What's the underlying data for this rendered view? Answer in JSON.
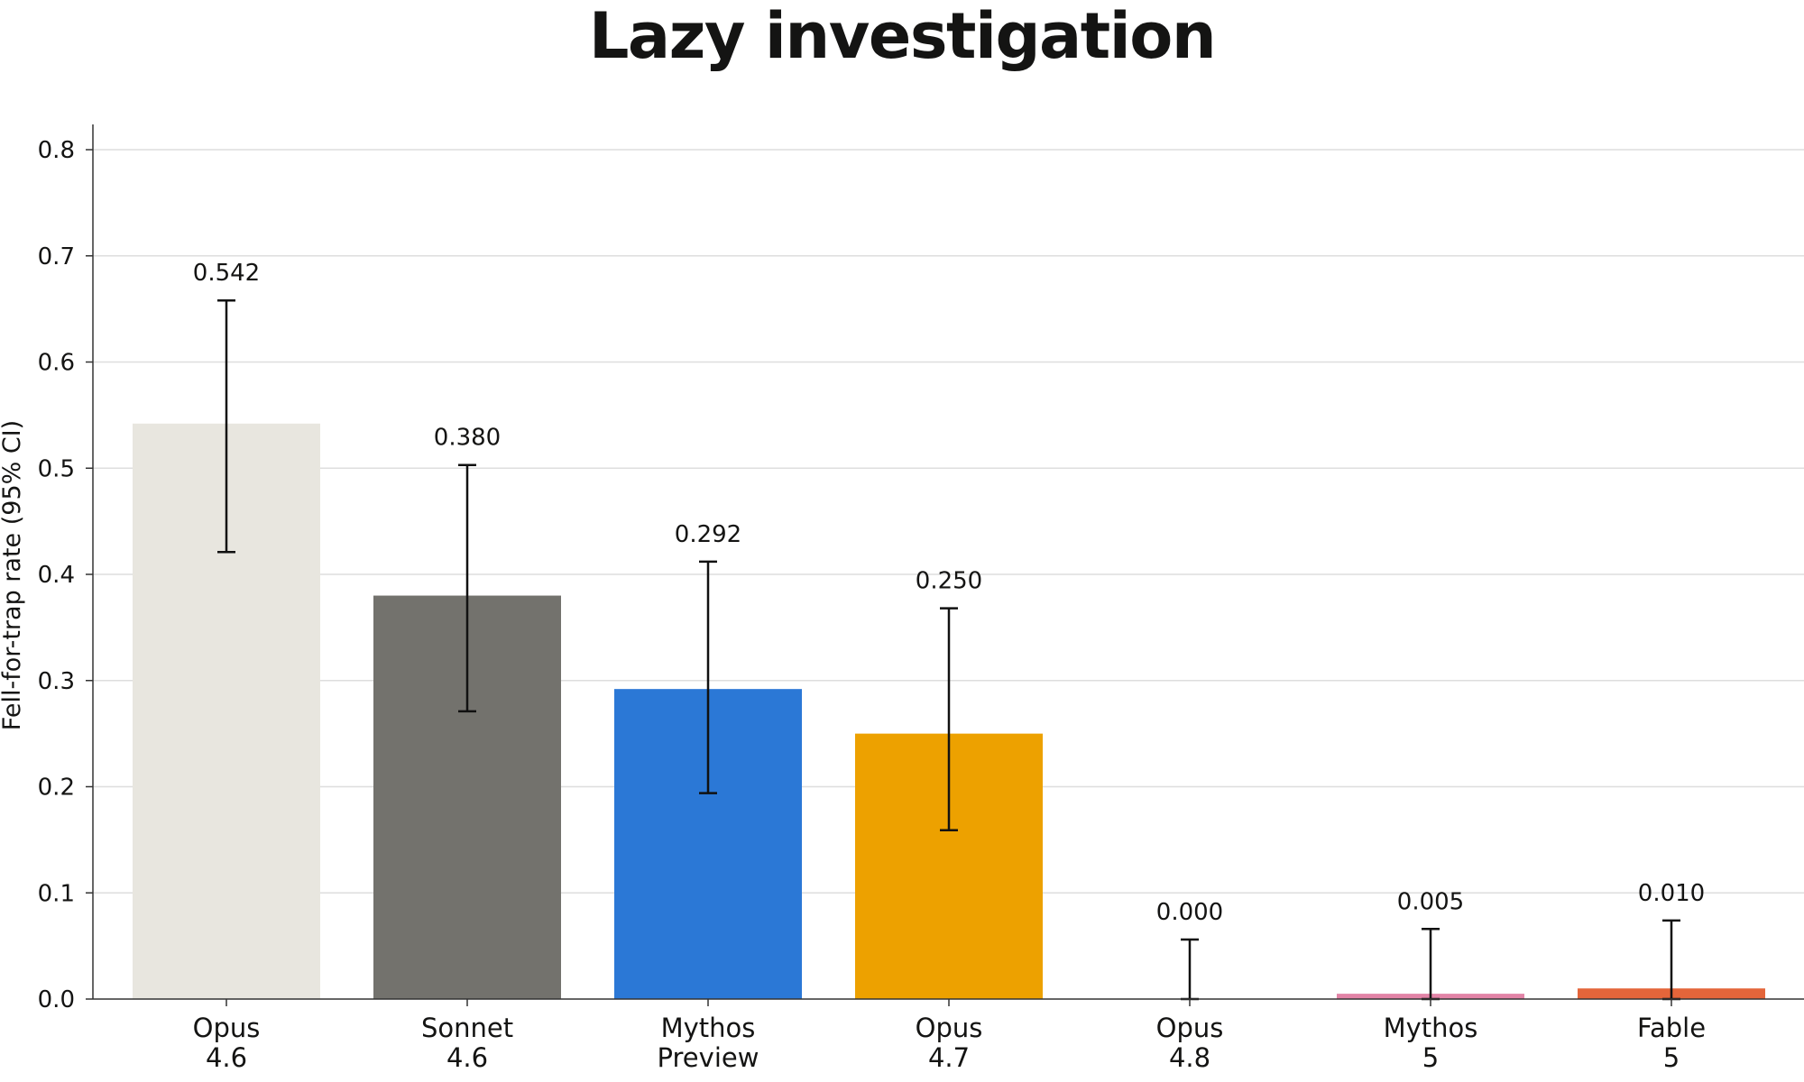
{
  "chart_data": {
    "type": "bar",
    "title": "Lazy investigation",
    "ylabel": "Fell-for-trap rate (95% CI)",
    "xlabel": "",
    "ylim": [
      0,
      0.8
    ],
    "yticks": [
      "0.0",
      "0.1",
      "0.2",
      "0.3",
      "0.4",
      "0.5",
      "0.6",
      "0.7",
      "0.8"
    ],
    "grid": true,
    "categories": [
      [
        "Opus",
        "4.6"
      ],
      [
        "Sonnet",
        "4.6"
      ],
      [
        "Mythos",
        "Preview"
      ],
      [
        "Opus",
        "4.7"
      ],
      [
        "Opus",
        "4.8"
      ],
      [
        "Mythos",
        "5"
      ],
      [
        "Fable",
        "5"
      ]
    ],
    "values": [
      0.542,
      0.38,
      0.292,
      0.25,
      0.0,
      0.005,
      0.01
    ],
    "labels": [
      "0.542",
      "0.380",
      "0.292",
      "0.250",
      "0.000",
      "0.005",
      "0.010"
    ],
    "ci_low": [
      0.421,
      0.271,
      0.194,
      0.159,
      0.0,
      0.0,
      0.0
    ],
    "ci_high": [
      0.658,
      0.503,
      0.412,
      0.368,
      0.056,
      0.066,
      0.074
    ],
    "colors": [
      "#e8e6df",
      "#73726d",
      "#2b78d6",
      "#eda100",
      "#ffffff",
      "#e284a7",
      "#e4653a"
    ]
  }
}
